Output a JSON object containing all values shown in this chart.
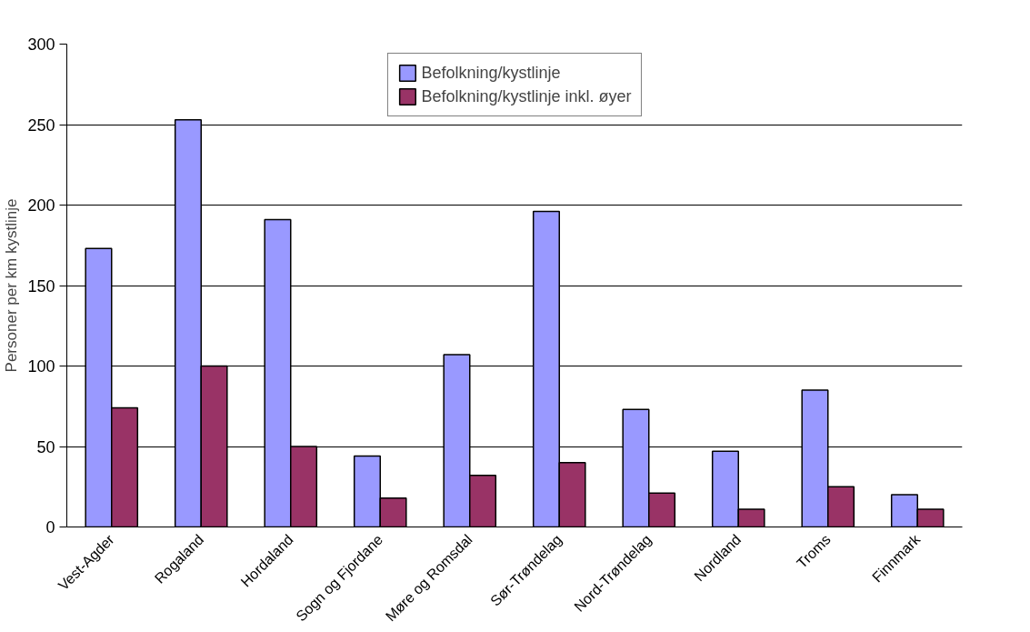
{
  "chart_data": {
    "type": "bar",
    "ylabel": "Personer per km kystlinje",
    "categories": [
      "Vest-Agder",
      "Rogaland",
      "Hordaland",
      "Sogn og Fjordane",
      "Møre og Romsdal",
      "Sør-Trøndelag",
      "Nord-Trøndelag",
      "Nordland",
      "Troms",
      "Finnmark"
    ],
    "series": [
      {
        "name": "Befolkning/kystlinje",
        "color": "#9999ff",
        "values": [
          173,
          253,
          191,
          44,
          107,
          196,
          73,
          47,
          85,
          20
        ]
      },
      {
        "name": "Befolkning/kystlinje inkl. øyer",
        "color": "#993366",
        "values": [
          74,
          100,
          50,
          18,
          32,
          40,
          21,
          11,
          25,
          11
        ]
      }
    ],
    "ylim": [
      0,
      300
    ],
    "yticks": [
      0,
      50,
      100,
      150,
      200,
      250,
      300
    ],
    "grid": "y",
    "legend": "top"
  }
}
